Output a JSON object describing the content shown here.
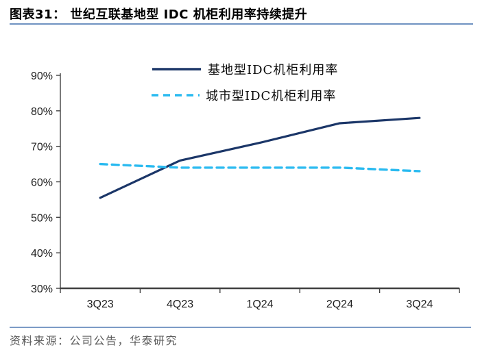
{
  "header": {
    "title": "图表31：  世纪互联基地型 IDC 机柜利用率持续提升"
  },
  "footer": {
    "source": "资料来源：公司公告，华泰研究"
  },
  "colors": {
    "base_line": "#1B3668",
    "city_line": "#29BAF0",
    "title_rule": "#6F92C1",
    "footer_rule": "#7C9BC6",
    "axis": "#404040",
    "axis_text": "#212121",
    "footer_text": "#595959"
  },
  "chart_data": {
    "type": "line",
    "title": "世纪互联基地型 IDC 机柜利用率持续提升",
    "categories": [
      "3Q23",
      "4Q23",
      "1Q24",
      "2Q24",
      "3Q24"
    ],
    "series": [
      {
        "name": "基地型IDC机柜利用率",
        "values": [
          55.5,
          66,
          71,
          76.5,
          78
        ],
        "color": "#1B3668",
        "style": "solid"
      },
      {
        "name": "城市型IDC机柜利用率",
        "values": [
          65,
          64,
          64,
          64,
          63
        ],
        "color": "#29BAF0",
        "style": "dashed"
      }
    ],
    "xlabel": "",
    "ylabel": "",
    "ylim": [
      30,
      90
    ],
    "y_tick_values": [
      30,
      40,
      50,
      60,
      70,
      80,
      90
    ],
    "y_ticks": [
      "30%",
      "40%",
      "50%",
      "60%",
      "70%",
      "80%",
      "90%"
    ],
    "unit": "%",
    "grid": false,
    "legend_position": "top-center"
  }
}
